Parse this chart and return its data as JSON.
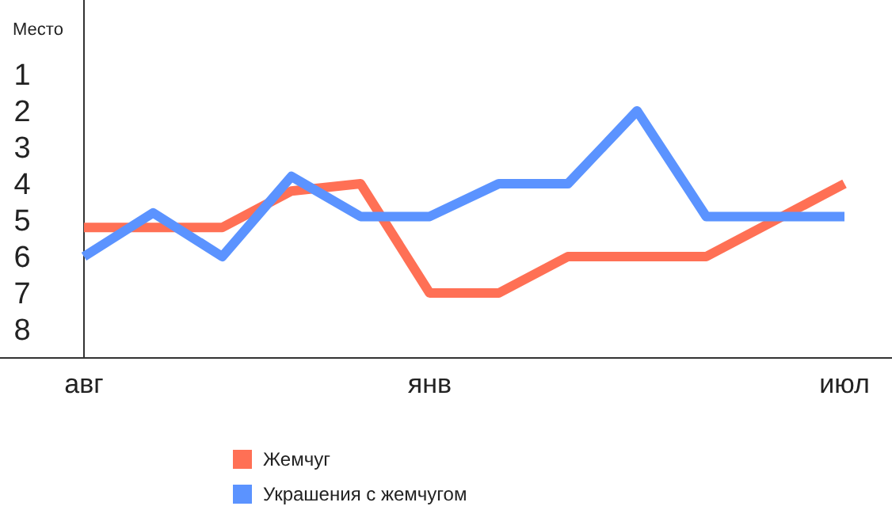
{
  "chart_data": {
    "type": "line",
    "ylabel": "Место",
    "categories": [
      "авг",
      null,
      null,
      null,
      null,
      "янв",
      null,
      null,
      null,
      null,
      null,
      "июл"
    ],
    "series": [
      {
        "name": "Жемчуг",
        "color": "#ff7055",
        "values": [
          5.2,
          5.2,
          5.2,
          4.2,
          4,
          7,
          7,
          6,
          6,
          6,
          5,
          4
        ]
      },
      {
        "name": "Украшения с жемчугом",
        "color": "#5b93ff",
        "values": [
          6,
          4.8,
          6,
          3.8,
          4.9,
          4.9,
          4,
          4,
          2,
          4.9,
          4.9,
          4.9
        ]
      }
    ],
    "ylim": [
      9,
      -1
    ],
    "yticks": [
      1,
      2,
      3,
      4,
      5,
      6,
      7,
      8
    ],
    "grid": false,
    "legend": "bottom",
    "marker": "none",
    "line_style": "solid"
  }
}
